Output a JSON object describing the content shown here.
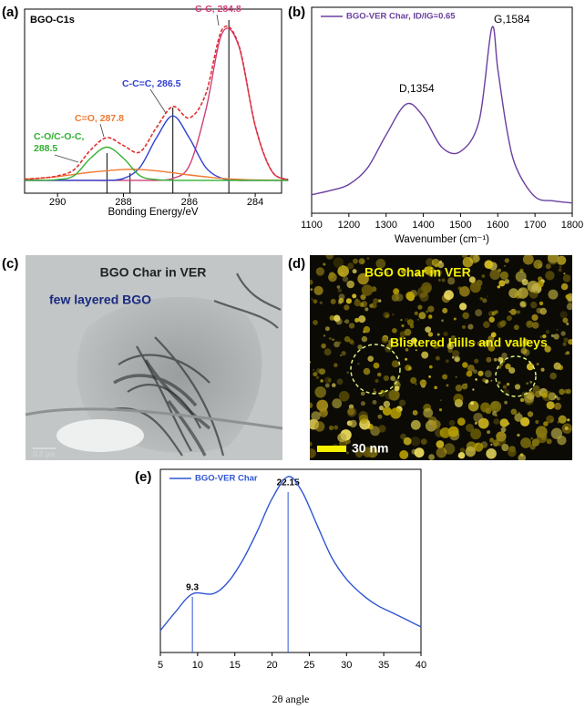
{
  "chart_data": [
    {
      "type": "line",
      "panel_label": "(a)",
      "title": "BGO-C1s",
      "xlabel": "Bonding Energy/eV",
      "xlim": [
        291,
        283.2
      ],
      "xticks": [
        290,
        288,
        286,
        284
      ],
      "ylim": [
        0,
        100
      ],
      "x": [
        291,
        290.5,
        290,
        289.5,
        289,
        288.5,
        288,
        287.5,
        287,
        286.5,
        286,
        285.5,
        285,
        284.5,
        284,
        283.5,
        283
      ],
      "series": [
        {
          "color": "#d0407a",
          "values": [
            7,
            7,
            7,
            7,
            7,
            7,
            7,
            7,
            7,
            8,
            15,
            45,
            87,
            80,
            36.5,
            12,
            7.4
          ]
        },
        {
          "color": "#3040d0",
          "values": [
            7,
            7,
            7,
            7,
            7,
            7,
            8,
            14,
            30,
            42,
            30,
            14,
            8,
            7,
            7,
            7,
            7
          ]
        },
        {
          "color": "#f07a30",
          "values": [
            7.6,
            8.2,
            9,
            10.2,
            11.4,
            12.2,
            12.9,
            12.9,
            12.2,
            11.1,
            9.9,
            8.9,
            8,
            7.5,
            7.2,
            7.1,
            7
          ]
        },
        {
          "color": "#30b030",
          "values": [
            7,
            7,
            7.4,
            9.5,
            19,
            25,
            19,
            9.5,
            7.4,
            7,
            7,
            7,
            7,
            7,
            7,
            7,
            7
          ]
        },
        {
          "color": "#e03030",
          "dash": true,
          "values": [
            7.6,
            8.2,
            9.4,
            12.7,
            23.4,
            30.2,
            25.9,
            22.4,
            35.6,
            47.1,
            40.9,
            53.9,
            89,
            80.5,
            36.7,
            12.1,
            7.4
          ]
        }
      ],
      "vlines": [
        284.8,
        286.5,
        287.8,
        288.5
      ],
      "vline_color": "#000000",
      "annotations": [
        "C-C, 284.8",
        "C-C=C, 286.5",
        "C=O, 287.8",
        "C-O/C-O-C,",
        "288.5"
      ]
    },
    {
      "type": "line",
      "panel_label": "(b)",
      "xlabel": "Wavenumber (cm⁻¹)",
      "xlim": [
        1100,
        1800
      ],
      "xticks": [
        1100,
        1200,
        1300,
        1400,
        1500,
        1600,
        1700,
        1800
      ],
      "ylim": [
        0,
        100
      ],
      "x": [
        1100,
        1150,
        1200,
        1250,
        1300,
        1354,
        1400,
        1450,
        1500,
        1550,
        1584,
        1600,
        1625,
        1650,
        1700,
        1750,
        1800
      ],
      "series": [
        {
          "name": "BGO-VER Char, ID/IG=0.65",
          "color": "#6a3fa0",
          "values": [
            9,
            11,
            14,
            22,
            38,
            53,
            47,
            32,
            30,
            45,
            90,
            70,
            40,
            22,
            8,
            6,
            5
          ]
        }
      ],
      "annotations": [
        "D,1354",
        "G,1584"
      ]
    },
    {
      "type": "line",
      "panel_label": "(e)",
      "xlabel": "2θ angle",
      "xlim": [
        5,
        40
      ],
      "xticks": [
        5,
        10,
        15,
        20,
        25,
        30,
        35,
        40
      ],
      "ylim": [
        0,
        100
      ],
      "x": [
        5,
        7,
        9.3,
        12,
        14,
        16,
        18,
        20,
        22.15,
        24,
        26,
        28,
        30,
        32,
        34,
        36,
        38,
        40
      ],
      "series": [
        {
          "name": "BGO-VER Char",
          "color": "#2f55d4",
          "values": [
            12,
            22,
            32,
            32,
            38,
            50,
            66,
            84,
            96,
            88,
            70,
            52,
            40,
            32,
            26,
            22,
            18,
            14
          ]
        }
      ],
      "vlines": [
        22.15,
        9.3
      ],
      "vline_color": "#2f55d4"
    }
  ],
  "micrographs": [
    {
      "panel_label": "(c)",
      "title": "BGO Char in VER",
      "note": "few layered BGO",
      "scale_bar": "0.2 μm"
    },
    {
      "panel_label": "(d)",
      "title": "BGO Char in VER",
      "note": "Blistered Hills and valleys",
      "scale_bar": "30 nm"
    }
  ]
}
